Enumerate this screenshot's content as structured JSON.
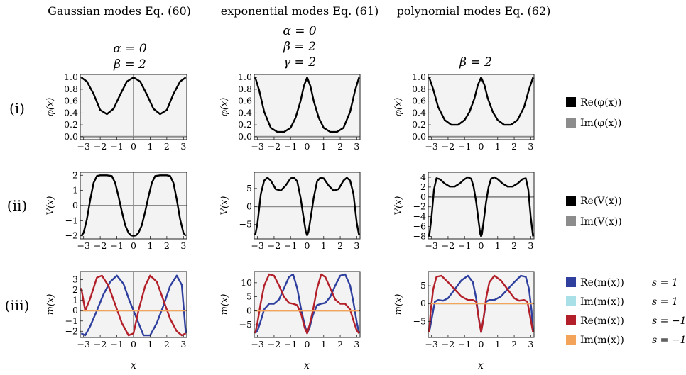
{
  "columns": [
    {
      "title": "Gaussian modes Eq. (60)",
      "params": [
        "α = 0",
        "β = 2"
      ]
    },
    {
      "title": "exponential modes Eq. (61)",
      "params": [
        "α = 0",
        "β = 2",
        "γ = 2"
      ]
    },
    {
      "title": "polynomial modes Eq. (62)",
      "params": [
        "β = 2"
      ]
    }
  ],
  "rows": [
    {
      "label": "(i)",
      "ylabel": "φ(x)"
    },
    {
      "label": "(ii)",
      "ylabel": "V(x)"
    },
    {
      "label": "(iii)",
      "ylabel": "m(x)"
    }
  ],
  "xlabel": "x",
  "legends": [
    {
      "items": [
        {
          "label": "Re(φ(x))",
          "color": "#000000",
          "s": ""
        },
        {
          "label": "Im(φ(x))",
          "color": "#8c8c8c",
          "s": ""
        }
      ]
    },
    {
      "items": [
        {
          "label": "Re(V(x))",
          "color": "#000000",
          "s": ""
        },
        {
          "label": "Im(V(x))",
          "color": "#8c8c8c",
          "s": ""
        }
      ]
    },
    {
      "items": [
        {
          "label": "Re(m(x))",
          "color": "#2e3f9e",
          "s": "s = 1"
        },
        {
          "label": "Im(m(x))",
          "color": "#a9dfe6",
          "s": "s = 1"
        },
        {
          "label": "Re(m(x))",
          "color": "#b3202a",
          "s": "s = −1"
        },
        {
          "label": "Im(m(x))",
          "color": "#f4a35a",
          "s": "s = −1"
        }
      ]
    }
  ],
  "chart_data": [
    {
      "type": "line",
      "panel": "i-gaussian",
      "xlim": [
        -3.2,
        3.2
      ],
      "ylim": [
        -0.05,
        1.05
      ],
      "xticks": [
        "−3",
        "−2",
        "−1",
        "0",
        "1",
        "2",
        "3"
      ],
      "yticks": [
        "0.0",
        "0.2",
        "0.4",
        "0.6",
        "0.8",
        "1.0"
      ],
      "series": [
        {
          "name": "Re(φ(x))",
          "x": [
            -3.14,
            -2.8,
            -2.4,
            -2.0,
            -1.6,
            -1.2,
            -0.8,
            -0.4,
            0,
            0.4,
            0.8,
            1.2,
            1.6,
            2.0,
            2.4,
            2.8,
            3.14
          ],
          "y": [
            1.0,
            0.93,
            0.72,
            0.45,
            0.38,
            0.47,
            0.71,
            0.93,
            1.0,
            0.93,
            0.71,
            0.47,
            0.38,
            0.45,
            0.72,
            0.93,
            1.0
          ]
        },
        {
          "name": "Im(φ(x))",
          "x": [
            -3.14,
            3.14
          ],
          "y": [
            0.0,
            0.0
          ]
        }
      ]
    },
    {
      "type": "line",
      "panel": "i-exponential",
      "xlim": [
        -3.2,
        3.2
      ],
      "ylim": [
        -0.05,
        1.05
      ],
      "xticks": [
        "−3",
        "−2",
        "−1",
        "0",
        "1",
        "2",
        "3"
      ],
      "yticks": [
        "0.0",
        "0.2",
        "0.4",
        "0.6",
        "0.8",
        "1.0"
      ],
      "series": [
        {
          "name": "Re(φ(x))",
          "x": [
            -3.14,
            -2.9,
            -2.6,
            -2.2,
            -1.8,
            -1.4,
            -1.0,
            -0.7,
            -0.4,
            -0.2,
            0,
            0.2,
            0.4,
            0.7,
            1.0,
            1.4,
            1.8,
            2.2,
            2.6,
            2.9,
            3.14
          ],
          "y": [
            1.0,
            0.78,
            0.42,
            0.15,
            0.08,
            0.08,
            0.15,
            0.32,
            0.6,
            0.85,
            1.0,
            0.85,
            0.6,
            0.32,
            0.15,
            0.08,
            0.08,
            0.15,
            0.42,
            0.78,
            1.0
          ]
        },
        {
          "name": "Im(φ(x))",
          "x": [
            -3.14,
            3.14
          ],
          "y": [
            0.0,
            0.0
          ]
        }
      ]
    },
    {
      "type": "line",
      "panel": "i-polynomial",
      "xlim": [
        -3.2,
        3.2
      ],
      "ylim": [
        -0.05,
        1.05
      ],
      "xticks": [
        "−3",
        "−2",
        "−1",
        "0",
        "1",
        "2",
        "3"
      ],
      "yticks": [
        "0.0",
        "0.2",
        "0.4",
        "0.6",
        "0.8",
        "1.0"
      ],
      "series": [
        {
          "name": "Re(φ(x))",
          "x": [
            -3.14,
            -2.9,
            -2.6,
            -2.2,
            -1.8,
            -1.4,
            -1.0,
            -0.7,
            -0.4,
            -0.2,
            0,
            0.2,
            0.4,
            0.7,
            1.0,
            1.4,
            1.8,
            2.2,
            2.6,
            2.9,
            3.14
          ],
          "y": [
            1.0,
            0.8,
            0.5,
            0.28,
            0.2,
            0.2,
            0.28,
            0.42,
            0.65,
            0.87,
            1.0,
            0.87,
            0.65,
            0.42,
            0.28,
            0.2,
            0.2,
            0.28,
            0.5,
            0.8,
            1.0
          ]
        },
        {
          "name": "Im(φ(x))",
          "x": [
            -3.14,
            3.14
          ],
          "y": [
            0.0,
            0.0
          ]
        }
      ]
    },
    {
      "type": "line",
      "panel": "ii-gaussian",
      "xlim": [
        -3.2,
        3.2
      ],
      "ylim": [
        -2.2,
        2.2
      ],
      "xticks": [
        "−3",
        "−2",
        "−1",
        "0",
        "1",
        "2",
        "3"
      ],
      "yticks": [
        "−2",
        "−1",
        "0",
        "1",
        "2"
      ],
      "series": [
        {
          "name": "Re(V(x))",
          "x": [
            -3.14,
            -3.0,
            -2.8,
            -2.6,
            -2.4,
            -2.2,
            -2.0,
            -1.6,
            -1.3,
            -1.1,
            -0.9,
            -0.7,
            -0.5,
            -0.3,
            -0.15,
            0,
            0.15,
            0.3,
            0.5,
            0.7,
            0.9,
            1.1,
            1.3,
            1.6,
            2.0,
            2.2,
            2.4,
            2.6,
            2.8,
            3.0,
            3.14
          ],
          "y": [
            -2.0,
            -1.8,
            -0.9,
            0.4,
            1.5,
            1.95,
            2.0,
            2.0,
            1.95,
            1.5,
            0.6,
            -0.4,
            -1.3,
            -1.8,
            -1.97,
            -2.0,
            -1.97,
            -1.8,
            -1.3,
            -0.4,
            0.6,
            1.5,
            1.95,
            2.0,
            2.0,
            1.95,
            1.5,
            0.4,
            -0.9,
            -1.8,
            -2.0
          ]
        },
        {
          "name": "Im(V(x))",
          "x": [
            -3.14,
            3.14
          ],
          "y": [
            0.0,
            0.0
          ]
        }
      ]
    },
    {
      "type": "line",
      "panel": "ii-exponential",
      "xlim": [
        -3.2,
        3.2
      ],
      "ylim": [
        -9,
        9.5
      ],
      "xticks": [
        "−3",
        "−2",
        "−1",
        "0",
        "1",
        "2",
        "3"
      ],
      "yticks": [
        "−5",
        "0",
        "5"
      ],
      "series": [
        {
          "name": "Re(V(x))",
          "x": [
            -3.14,
            -3.0,
            -2.8,
            -2.6,
            -2.4,
            -2.2,
            -1.9,
            -1.6,
            -1.3,
            -1.0,
            -0.8,
            -0.6,
            -0.4,
            -0.2,
            -0.08,
            0,
            0.08,
            0.2,
            0.4,
            0.6,
            0.8,
            1.0,
            1.3,
            1.6,
            1.9,
            2.2,
            2.4,
            2.6,
            2.8,
            3.0,
            3.14
          ],
          "y": [
            -8.0,
            -4.5,
            3.5,
            7.2,
            8.0,
            7.2,
            4.8,
            4.4,
            5.8,
            7.8,
            8.0,
            7.0,
            2.5,
            -3.5,
            -7.0,
            -8.0,
            -7.0,
            -3.5,
            2.5,
            7.0,
            8.0,
            7.8,
            5.8,
            4.4,
            4.8,
            7.2,
            8.0,
            7.2,
            3.5,
            -4.5,
            -8.0
          ]
        },
        {
          "name": "Im(V(x))",
          "x": [
            -3.14,
            3.14
          ],
          "y": [
            0.0,
            0.0
          ]
        }
      ]
    },
    {
      "type": "line",
      "panel": "ii-polynomial",
      "xlim": [
        -3.2,
        3.2
      ],
      "ylim": [
        -8.5,
        5
      ],
      "xticks": [
        "−3",
        "−2",
        "−1",
        "0",
        "1",
        "2",
        "3"
      ],
      "yticks": [
        "−8",
        "−6",
        "−4",
        "−2",
        "0",
        "2",
        "4"
      ],
      "series": [
        {
          "name": "Re(V(x))",
          "x": [
            -3.14,
            -3.0,
            -2.85,
            -2.7,
            -2.5,
            -2.2,
            -1.9,
            -1.6,
            -1.3,
            -1.0,
            -0.8,
            -0.6,
            -0.45,
            -0.3,
            -0.15,
            -0.05,
            0,
            0.05,
            0.15,
            0.3,
            0.45,
            0.6,
            0.8,
            1.0,
            1.3,
            1.6,
            1.9,
            2.2,
            2.5,
            2.7,
            2.85,
            3.0,
            3.14
          ],
          "y": [
            -8.0,
            -4.0,
            1.5,
            3.8,
            3.6,
            2.7,
            2.1,
            2.1,
            2.7,
            3.6,
            4.0,
            3.7,
            2.0,
            -1.0,
            -5.0,
            -7.5,
            -8.0,
            -7.5,
            -5.0,
            -1.0,
            2.0,
            3.7,
            4.0,
            3.6,
            2.7,
            2.1,
            2.1,
            2.7,
            3.6,
            3.8,
            1.5,
            -4.0,
            -8.0
          ]
        },
        {
          "name": "Im(V(x))",
          "x": [
            -3.14,
            3.14
          ],
          "y": [
            0.0,
            0.0
          ]
        }
      ]
    },
    {
      "type": "line",
      "panel": "iii-gaussian",
      "xlim": [
        -3.2,
        3.2
      ],
      "ylim": [
        -2.6,
        3.8
      ],
      "xticks": [
        "−3",
        "−2",
        "−1",
        "0",
        "1",
        "2",
        "3"
      ],
      "yticks": [
        "−2",
        "−1",
        "0",
        "1",
        "2",
        "3"
      ],
      "series": [
        {
          "name": "Re(m(x)) s = 1",
          "x": [
            -3.14,
            -2.9,
            -2.6,
            -2.2,
            -1.8,
            -1.4,
            -1.0,
            -0.6,
            -0.25,
            0,
            0.25,
            0.6,
            1.0,
            1.4,
            1.8,
            2.2,
            2.6,
            2.9,
            3.14
          ],
          "y": [
            -2.2,
            -2.4,
            -1.5,
            0.0,
            1.6,
            2.8,
            3.4,
            2.6,
            1.0,
            0.0,
            -1.0,
            -2.4,
            -2.4,
            -1.2,
            0.5,
            2.4,
            3.4,
            2.5,
            -2.2
          ]
        },
        {
          "name": "Im(m(x)) s = 1",
          "x": [
            -3.14,
            3.14
          ],
          "y": [
            0.0,
            0.0
          ]
        },
        {
          "name": "Re(m(x)) s = −1",
          "x": [
            -3.14,
            -2.9,
            -2.6,
            -2.2,
            -1.9,
            -1.5,
            -1.1,
            -0.7,
            -0.3,
            0,
            0.3,
            0.7,
            1.0,
            1.4,
            1.8,
            2.2,
            2.6,
            2.9,
            3.14
          ],
          "y": [
            2.2,
            0.0,
            1.2,
            3.2,
            3.4,
            2.4,
            0.6,
            -1.2,
            -2.4,
            -2.2,
            0.0,
            2.4,
            3.4,
            2.8,
            1.0,
            -0.8,
            -2.0,
            -2.4,
            -2.2
          ]
        },
        {
          "name": "Im(m(x)) s = −1",
          "x": [
            -3.14,
            3.14
          ],
          "y": [
            0.0,
            0.0
          ]
        }
      ]
    },
    {
      "type": "line",
      "panel": "iii-exponential",
      "xlim": [
        -3.2,
        3.2
      ],
      "ylim": [
        -9.5,
        14
      ],
      "xticks": [
        "−3",
        "−2",
        "−1",
        "0",
        "1",
        "2",
        "3"
      ],
      "yticks": [
        "−5",
        "0",
        "5",
        "10"
      ],
      "series": [
        {
          "name": "Re(m(x)) s = 1",
          "x": [
            -3.14,
            -3.0,
            -2.8,
            -2.6,
            -2.3,
            -2.0,
            -1.7,
            -1.4,
            -1.1,
            -0.85,
            -0.6,
            -0.35,
            -0.15,
            0,
            0.15,
            0.35,
            0.6,
            0.85,
            1.1,
            1.4,
            1.7,
            2.0,
            2.3,
            2.6,
            2.8,
            3.0,
            3.14
          ],
          "y": [
            -8.0,
            -7.0,
            -3.5,
            0.5,
            2.5,
            2.5,
            4.0,
            8.0,
            12.0,
            13.0,
            8.0,
            0.0,
            -5.0,
            -8.0,
            -6.0,
            -1.5,
            2.0,
            2.5,
            2.8,
            5.0,
            9.0,
            12.5,
            13.0,
            9.0,
            3.0,
            -4.0,
            -8.0
          ]
        },
        {
          "name": "Im(m(x)) s = 1",
          "x": [
            -3.14,
            3.14
          ],
          "y": [
            0.0,
            0.0
          ]
        },
        {
          "name": "Re(m(x)) s = −1",
          "x": [
            -3.14,
            -3.0,
            -2.8,
            -2.6,
            -2.3,
            -2.0,
            -1.7,
            -1.4,
            -1.1,
            -0.85,
            -0.6,
            -0.35,
            -0.15,
            0,
            0.15,
            0.35,
            0.6,
            0.85,
            1.1,
            1.4,
            1.7,
            2.0,
            2.3,
            2.6,
            2.8,
            3.0,
            3.14
          ],
          "y": [
            -8.0,
            -4.0,
            3.0,
            9.0,
            13.0,
            12.5,
            9.0,
            5.0,
            2.8,
            2.5,
            2.0,
            -1.5,
            -6.0,
            -8.0,
            -5.0,
            0.0,
            8.0,
            13.0,
            12.0,
            8.0,
            4.0,
            2.5,
            2.5,
            0.5,
            -3.5,
            -7.0,
            -8.0
          ]
        },
        {
          "name": "Im(m(x)) s = −1",
          "x": [
            -3.14,
            3.14
          ],
          "y": [
            0.0,
            0.0
          ]
        }
      ]
    },
    {
      "type": "line",
      "panel": "iii-polynomial",
      "xlim": [
        -3.2,
        3.2
      ],
      "ylim": [
        -9.5,
        9
      ],
      "xticks": [
        "−3",
        "−2",
        "−1",
        "0",
        "1",
        "2",
        "3"
      ],
      "yticks": [
        "−5",
        "0",
        "5"
      ],
      "series": [
        {
          "name": "Re(m(x)) s = 1",
          "x": [
            -3.14,
            -3.0,
            -2.8,
            -2.6,
            -2.3,
            -2.0,
            -1.6,
            -1.2,
            -0.8,
            -0.5,
            -0.3,
            -0.15,
            0,
            0.15,
            0.3,
            0.5,
            0.8,
            1.2,
            1.6,
            2.0,
            2.4,
            2.7,
            2.9,
            3.05,
            3.14
          ],
          "y": [
            -8.0,
            -4.5,
            0.5,
            1.0,
            0.8,
            1.5,
            4.0,
            6.5,
            7.8,
            6.0,
            1.5,
            -4.0,
            -8.0,
            -4.0,
            0.5,
            1.0,
            1.0,
            2.0,
            4.0,
            6.0,
            7.8,
            7.5,
            4.0,
            -2.0,
            -8.0
          ]
        },
        {
          "name": "Im(m(x)) s = 1",
          "x": [
            -3.14,
            3.14
          ],
          "y": [
            0.0,
            0.0
          ]
        },
        {
          "name": "Re(m(x)) s = −1",
          "x": [
            -3.14,
            -3.05,
            -2.9,
            -2.7,
            -2.4,
            -2.0,
            -1.6,
            -1.2,
            -0.8,
            -0.5,
            -0.3,
            -0.15,
            0,
            0.15,
            0.3,
            0.5,
            0.8,
            1.2,
            1.6,
            2.0,
            2.3,
            2.6,
            2.8,
            3.0,
            3.14
          ],
          "y": [
            -8.0,
            -2.0,
            4.0,
            7.5,
            7.8,
            6.0,
            4.0,
            2.0,
            1.0,
            1.0,
            0.5,
            -4.0,
            -8.0,
            -4.0,
            1.5,
            6.0,
            7.8,
            6.5,
            4.0,
            1.5,
            0.8,
            1.0,
            0.5,
            -4.5,
            -8.0
          ]
        },
        {
          "name": "Im(m(x)) s = −1",
          "x": [
            -3.14,
            3.14
          ],
          "y": [
            0.0,
            0.0
          ]
        }
      ]
    }
  ]
}
